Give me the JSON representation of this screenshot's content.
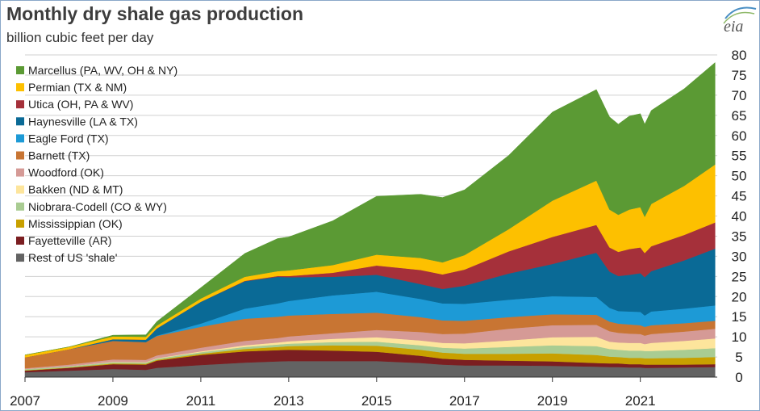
{
  "title": "Monthly dry shale gas production",
  "subtitle": "billion cubic feet per day",
  "logo_text": "eia",
  "chart_data": {
    "type": "area",
    "stacked": true,
    "title": "Monthly dry shale gas production",
    "ylabel": "billion cubic feet per day",
    "x": [
      2007,
      2008,
      2009,
      2009.75,
      2010,
      2011,
      2012,
      2012.75,
      2013,
      2014,
      2015,
      2016,
      2016.5,
      2017,
      2018,
      2019,
      2020,
      2020.3,
      2020.5,
      2020.75,
      2021,
      2021.1,
      2021.25,
      2022,
      2022.7
    ],
    "xlim": [
      2007,
      2022.75
    ],
    "ylim": [
      0,
      80
    ],
    "xticks": [
      2007,
      2009,
      2011,
      2013,
      2015,
      2017,
      2019,
      2021
    ],
    "yticks": [
      0,
      5,
      10,
      15,
      20,
      25,
      30,
      35,
      40,
      45,
      50,
      55,
      60,
      65,
      70,
      75,
      80
    ],
    "legend_position": "top-left",
    "series": [
      {
        "name": "Rest of US 'shale'",
        "color": "#636363",
        "values": [
          1.2,
          1.6,
          2.0,
          1.8,
          2.3,
          3.0,
          3.6,
          3.9,
          4.0,
          4.0,
          4.0,
          3.5,
          3.1,
          2.9,
          2.9,
          2.8,
          2.6,
          2.5,
          2.5,
          2.4,
          2.4,
          2.3,
          2.3,
          2.4,
          2.5
        ]
      },
      {
        "name": "Fayetteville (AR)",
        "color": "#7b1e21",
        "values": [
          0.4,
          0.7,
          1.2,
          1.3,
          1.8,
          2.5,
          2.8,
          2.8,
          2.8,
          2.6,
          2.3,
          1.8,
          1.5,
          1.4,
          1.2,
          1.1,
          0.9,
          0.9,
          0.9,
          0.8,
          0.8,
          0.8,
          0.8,
          0.7,
          0.7
        ]
      },
      {
        "name": "Mississippian (OK)",
        "color": "#c8a000",
        "values": [
          0.1,
          0.1,
          0.2,
          0.2,
          0.2,
          0.3,
          0.6,
          0.8,
          0.9,
          1.3,
          1.5,
          1.5,
          1.5,
          1.5,
          1.7,
          2.0,
          2.0,
          1.7,
          1.6,
          1.6,
          1.6,
          1.6,
          1.6,
          1.7,
          1.8
        ]
      },
      {
        "name": "Niobrara-Codell (CO & WY)",
        "color": "#a9cc92",
        "values": [
          0.3,
          0.3,
          0.3,
          0.3,
          0.3,
          0.4,
          0.5,
          0.6,
          0.6,
          0.8,
          1.0,
          1.1,
          1.2,
          1.3,
          1.7,
          2.0,
          2.2,
          1.9,
          1.8,
          1.8,
          1.8,
          1.8,
          1.8,
          2.0,
          2.2
        ]
      },
      {
        "name": "Bakken (ND & MT)",
        "color": "#fde59c",
        "values": [
          0.0,
          0.0,
          0.1,
          0.1,
          0.1,
          0.2,
          0.4,
          0.5,
          0.6,
          0.8,
          1.1,
          1.2,
          1.2,
          1.3,
          1.6,
          2.0,
          2.3,
          1.8,
          1.8,
          1.9,
          1.9,
          1.7,
          2.0,
          2.2,
          2.4
        ]
      },
      {
        "name": "Woodford (OK)",
        "color": "#d59a96",
        "values": [
          0.2,
          0.4,
          0.6,
          0.6,
          0.7,
          0.9,
          1.1,
          1.1,
          1.2,
          1.4,
          1.8,
          2.1,
          2.2,
          2.4,
          2.9,
          3.0,
          3.0,
          2.6,
          2.4,
          2.3,
          2.2,
          2.1,
          2.2,
          2.3,
          2.4
        ]
      },
      {
        "name": "Barnett (TX)",
        "color": "#c87533",
        "values": [
          2.7,
          3.8,
          4.6,
          4.4,
          4.8,
          5.2,
          5.5,
          5.3,
          5.2,
          4.8,
          4.3,
          3.7,
          3.4,
          3.2,
          2.9,
          2.7,
          2.5,
          2.4,
          2.3,
          2.3,
          2.2,
          2.2,
          2.2,
          2.1,
          2.0
        ]
      },
      {
        "name": "Eagle Ford (TX)",
        "color": "#1d9ad6",
        "values": [
          0.0,
          0.0,
          0.0,
          0.0,
          0.1,
          0.8,
          2.5,
          3.3,
          3.6,
          4.6,
          5.2,
          4.5,
          4.2,
          4.2,
          4.3,
          4.5,
          4.4,
          3.4,
          3.1,
          3.2,
          3.3,
          2.8,
          3.4,
          3.6,
          3.8
        ]
      },
      {
        "name": "Haynesville (LA & TX)",
        "color": "#0a6a96",
        "values": [
          0.0,
          0.0,
          0.4,
          0.6,
          1.8,
          5.4,
          6.8,
          6.6,
          5.9,
          4.6,
          4.2,
          3.7,
          3.6,
          4.5,
          6.5,
          8.0,
          11.0,
          9.0,
          8.7,
          9.1,
          9.6,
          9.5,
          10.0,
          12.0,
          14.1
        ]
      },
      {
        "name": "Utica (OH, PA & WV)",
        "color": "#a5303a",
        "values": [
          0.0,
          0.0,
          0.0,
          0.0,
          0.0,
          0.0,
          0.1,
          0.2,
          0.3,
          1.0,
          2.3,
          3.5,
          3.6,
          4.0,
          5.5,
          6.7,
          6.9,
          6.0,
          6.0,
          6.4,
          6.4,
          6.0,
          6.2,
          6.3,
          6.5
        ]
      },
      {
        "name": "Permian (TX & NM)",
        "color": "#fdc000",
        "values": [
          0.6,
          0.6,
          0.7,
          0.7,
          0.7,
          0.8,
          1.0,
          1.2,
          1.4,
          1.9,
          2.7,
          3.0,
          3.0,
          3.6,
          5.5,
          9.0,
          11.0,
          9.4,
          9.2,
          9.8,
          10.0,
          9.0,
          10.5,
          12.2,
          14.4
        ]
      },
      {
        "name": "Marcellus (PA, WV, OH & NY)",
        "color": "#5b9a34",
        "values": [
          0.0,
          0.0,
          0.3,
          0.5,
          1.0,
          2.7,
          5.8,
          8.1,
          8.3,
          11.0,
          14.5,
          15.8,
          16.1,
          16.2,
          18.3,
          22.0,
          22.6,
          23.0,
          22.5,
          23.2,
          23.2,
          23.0,
          23.2,
          24.1,
          25.3
        ]
      }
    ]
  }
}
